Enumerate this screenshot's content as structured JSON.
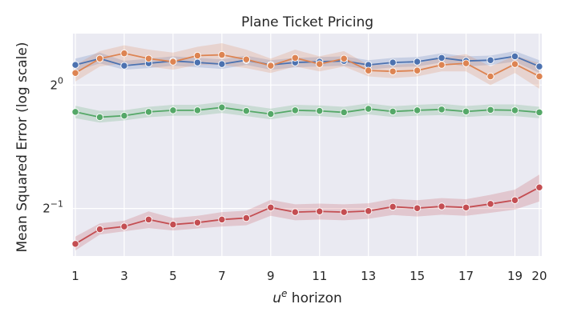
{
  "chart_data": {
    "type": "line",
    "title": "Plane Ticket Pricing",
    "xlabel": {
      "base": "u",
      "superscript": "e",
      "rest": " horizon"
    },
    "ylabel": "Mean Squared Error (log scale)",
    "x_ticks": [
      1,
      3,
      5,
      7,
      9,
      11,
      13,
      15,
      17,
      19,
      20
    ],
    "y_ticks": [
      {
        "value": 1.0,
        "base": "2",
        "exp": "0"
      },
      {
        "value": 0.5,
        "base": "2",
        "exp": "−1"
      }
    ],
    "yscale": "log2",
    "xlim": [
      0.9,
      20.1
    ],
    "ylim": [
      0.383,
      1.335
    ],
    "grid": true,
    "legend": "none",
    "x": [
      1,
      2,
      3,
      4,
      5,
      6,
      7,
      8,
      9,
      10,
      11,
      12,
      13,
      14,
      15,
      16,
      17,
      18,
      19,
      20
    ],
    "series": [
      {
        "color": "#4c72b0",
        "values": [
          1.12,
          1.16,
          1.115,
          1.13,
          1.145,
          1.135,
          1.125,
          1.15,
          1.12,
          1.135,
          1.14,
          1.145,
          1.12,
          1.135,
          1.14,
          1.165,
          1.145,
          1.15,
          1.175,
          1.11
        ],
        "lower": [
          1.08,
          1.13,
          1.09,
          1.1,
          1.115,
          1.105,
          1.095,
          1.12,
          1.09,
          1.105,
          1.11,
          1.115,
          1.09,
          1.105,
          1.11,
          1.135,
          1.11,
          1.12,
          1.14,
          1.07
        ],
        "upper": [
          1.16,
          1.2,
          1.145,
          1.16,
          1.175,
          1.165,
          1.155,
          1.18,
          1.15,
          1.165,
          1.17,
          1.175,
          1.15,
          1.165,
          1.17,
          1.195,
          1.175,
          1.18,
          1.21,
          1.15
        ]
      },
      {
        "color": "#dd8452",
        "values": [
          1.07,
          1.16,
          1.195,
          1.16,
          1.14,
          1.18,
          1.185,
          1.155,
          1.115,
          1.165,
          1.125,
          1.16,
          1.085,
          1.08,
          1.085,
          1.12,
          1.13,
          1.05,
          1.125,
          1.05
        ],
        "lower": [
          1.02,
          1.11,
          1.13,
          1.11,
          1.09,
          1.12,
          1.12,
          1.1,
          1.07,
          1.11,
          1.08,
          1.11,
          1.05,
          1.04,
          1.05,
          1.08,
          1.08,
          1.0,
          1.07,
          0.98
        ],
        "upper": [
          1.12,
          1.21,
          1.25,
          1.22,
          1.2,
          1.24,
          1.265,
          1.22,
          1.16,
          1.22,
          1.175,
          1.21,
          1.12,
          1.12,
          1.13,
          1.165,
          1.19,
          1.11,
          1.18,
          1.13
        ]
      },
      {
        "color": "#55a868",
        "values": [
          0.86,
          0.835,
          0.842,
          0.86,
          0.868,
          0.868,
          0.882,
          0.865,
          0.85,
          0.868,
          0.865,
          0.858,
          0.875,
          0.862,
          0.868,
          0.872,
          0.862,
          0.87,
          0.868,
          0.858
        ],
        "lower": [
          0.83,
          0.81,
          0.82,
          0.835,
          0.842,
          0.842,
          0.855,
          0.84,
          0.825,
          0.842,
          0.84,
          0.832,
          0.848,
          0.836,
          0.842,
          0.845,
          0.836,
          0.843,
          0.84,
          0.83
        ],
        "upper": [
          0.89,
          0.865,
          0.868,
          0.885,
          0.895,
          0.895,
          0.91,
          0.893,
          0.876,
          0.895,
          0.892,
          0.885,
          0.902,
          0.888,
          0.895,
          0.9,
          0.889,
          0.897,
          0.897,
          0.885
        ]
      },
      {
        "color": "#c44e52",
        "values": [
          0.41,
          0.445,
          0.452,
          0.47,
          0.457,
          0.462,
          0.47,
          0.474,
          0.503,
          0.49,
          0.492,
          0.49,
          0.493,
          0.505,
          0.501,
          0.506,
          0.503,
          0.513,
          0.524,
          0.563
        ],
        "lower": [
          0.395,
          0.432,
          0.44,
          0.448,
          0.442,
          0.447,
          0.452,
          0.455,
          0.48,
          0.468,
          0.47,
          0.468,
          0.472,
          0.482,
          0.478,
          0.483,
          0.48,
          0.488,
          0.497,
          0.52
        ],
        "upper": [
          0.427,
          0.46,
          0.467,
          0.492,
          0.474,
          0.48,
          0.49,
          0.494,
          0.525,
          0.512,
          0.514,
          0.512,
          0.515,
          0.528,
          0.524,
          0.53,
          0.527,
          0.54,
          0.556,
          0.605
        ]
      }
    ]
  }
}
